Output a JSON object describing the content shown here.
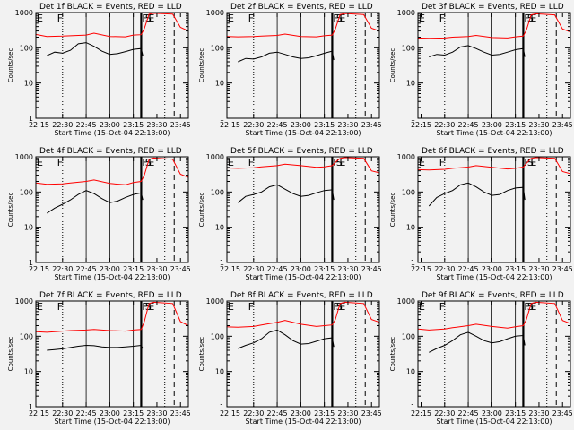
{
  "figure": {
    "background": "#f2f2f2",
    "events_color": "#000000",
    "lld_color": "#ff0000",
    "xlabel": "Start Time (15-Oct-04 22:13:00)",
    "ylabel": "Counts/sec"
  },
  "chart_data": [
    {
      "type": "line",
      "title": "Det 1f BLACK = Events, RED = LLD",
      "xlabel": "Start Time (15-Oct-04 22:13:00)",
      "ylabel": "Counts/sec",
      "xlim": [
        "22:13",
        "23:50"
      ],
      "ylim": [
        1,
        1000
      ],
      "y_scale": "log",
      "x_ticks": [
        "22:15",
        "22:30",
        "22:45",
        "23:00",
        "23:15",
        "23:30",
        "23:45"
      ],
      "y_ticks": [
        "1",
        "10",
        "100",
        "1000"
      ],
      "region_markers": [
        "E",
        "F",
        "F",
        "S",
        "E"
      ],
      "series": [
        {
          "name": "Events",
          "x": [
            "22:20",
            "22:25",
            "22:30",
            "22:35",
            "22:40",
            "22:45",
            "22:50",
            "22:55",
            "23:00",
            "23:05",
            "23:10",
            "23:15",
            "23:20",
            "23:21"
          ],
          "values": [
            60,
            75,
            70,
            85,
            130,
            140,
            110,
            80,
            65,
            68,
            78,
            90,
            95,
            60
          ]
        },
        {
          "name": "LLD",
          "x": [
            "22:13",
            "22:20",
            "22:30",
            "22:35",
            "22:45",
            "22:50",
            "23:00",
            "23:10",
            "23:15",
            "23:20",
            "23:22",
            "23:25",
            "23:28",
            "23:40",
            "23:45",
            "23:50"
          ],
          "values": [
            240,
            210,
            215,
            220,
            230,
            260,
            210,
            205,
            230,
            235,
            350,
            900,
            950,
            900,
            380,
            300
          ]
        }
      ]
    },
    {
      "type": "line",
      "title": "Det 2f BLACK = Events, RED = LLD",
      "xlabel": "Start Time (15-Oct-04 22:13:00)",
      "ylabel": "Counts/sec",
      "xlim": [
        "22:13",
        "23:50"
      ],
      "ylim": [
        1,
        1000
      ],
      "y_scale": "log",
      "x_ticks": [
        "22:15",
        "22:30",
        "22:45",
        "23:00",
        "23:15",
        "23:30",
        "23:45"
      ],
      "y_ticks": [
        "1",
        "10",
        "100",
        "1000"
      ],
      "region_markers": [
        "E",
        "F",
        "F",
        "S",
        "E"
      ],
      "series": [
        {
          "name": "Events",
          "x": [
            "22:20",
            "22:25",
            "22:30",
            "22:35",
            "22:40",
            "22:45",
            "22:50",
            "22:55",
            "23:00",
            "23:05",
            "23:10",
            "23:15",
            "23:20",
            "23:21"
          ],
          "values": [
            40,
            50,
            48,
            55,
            70,
            75,
            65,
            55,
            50,
            52,
            60,
            70,
            80,
            45
          ]
        },
        {
          "name": "LLD",
          "x": [
            "22:13",
            "22:20",
            "22:30",
            "22:35",
            "22:45",
            "22:50",
            "23:00",
            "23:10",
            "23:15",
            "23:20",
            "23:22",
            "23:25",
            "23:28",
            "23:40",
            "23:45",
            "23:50"
          ],
          "values": [
            210,
            205,
            210,
            215,
            225,
            245,
            210,
            205,
            220,
            230,
            340,
            880,
            940,
            880,
            360,
            300
          ]
        }
      ]
    },
    {
      "type": "line",
      "title": "Det 3f BLACK = Events, RED = LLD",
      "xlabel": "Start Time (15-Oct-04 22:13:00)",
      "ylabel": "Counts/sec",
      "xlim": [
        "22:13",
        "23:50"
      ],
      "ylim": [
        1,
        1000
      ],
      "y_scale": "log",
      "x_ticks": [
        "22:15",
        "22:30",
        "22:45",
        "23:00",
        "23:15",
        "23:30",
        "23:45"
      ],
      "y_ticks": [
        "1",
        "10",
        "100",
        "1000"
      ],
      "region_markers": [
        "E",
        "F",
        "F",
        "S",
        "E"
      ],
      "series": [
        {
          "name": "Events",
          "x": [
            "22:20",
            "22:25",
            "22:30",
            "22:35",
            "22:40",
            "22:45",
            "22:50",
            "22:55",
            "23:00",
            "23:05",
            "23:10",
            "23:15",
            "23:20",
            "23:21"
          ],
          "values": [
            55,
            65,
            62,
            75,
            105,
            115,
            95,
            75,
            62,
            65,
            75,
            88,
            95,
            55
          ]
        },
        {
          "name": "LLD",
          "x": [
            "22:13",
            "22:20",
            "22:30",
            "22:35",
            "22:45",
            "22:50",
            "23:00",
            "23:10",
            "23:15",
            "23:20",
            "23:22",
            "23:25",
            "23:28",
            "23:40",
            "23:45",
            "23:50"
          ],
          "values": [
            190,
            185,
            190,
            200,
            210,
            225,
            195,
            190,
            205,
            215,
            320,
            860,
            920,
            860,
            340,
            280
          ]
        }
      ]
    },
    {
      "type": "line",
      "title": "Det 4f BLACK = Events, RED = LLD",
      "xlabel": "Start Time (15-Oct-04 22:13:00)",
      "ylabel": "Counts/sec",
      "xlim": [
        "22:13",
        "23:50"
      ],
      "ylim": [
        1,
        1000
      ],
      "y_scale": "log",
      "x_ticks": [
        "22:15",
        "22:30",
        "22:45",
        "23:00",
        "23:15",
        "23:30",
        "23:45"
      ],
      "y_ticks": [
        "1",
        "10",
        "100",
        "1000"
      ],
      "region_markers": [
        "E",
        "F",
        "F",
        "S",
        "E"
      ],
      "series": [
        {
          "name": "Events",
          "x": [
            "22:20",
            "22:25",
            "22:30",
            "22:35",
            "22:40",
            "22:45",
            "22:50",
            "22:55",
            "23:00",
            "23:05",
            "23:10",
            "23:15",
            "23:20",
            "23:21"
          ],
          "values": [
            25,
            35,
            45,
            60,
            85,
            110,
            90,
            65,
            50,
            55,
            70,
            85,
            95,
            60
          ]
        },
        {
          "name": "LLD",
          "x": [
            "22:13",
            "22:20",
            "22:30",
            "22:35",
            "22:45",
            "22:50",
            "23:00",
            "23:10",
            "23:15",
            "23:20",
            "23:22",
            "23:25",
            "23:28",
            "23:40",
            "23:45",
            "23:50"
          ],
          "values": [
            180,
            165,
            170,
            180,
            200,
            220,
            175,
            160,
            185,
            200,
            300,
            850,
            920,
            850,
            320,
            260
          ]
        }
      ]
    },
    {
      "type": "line",
      "title": "Det 5f BLACK = Events, RED = LLD",
      "xlabel": "Start Time (15-Oct-04 22:13:00)",
      "ylabel": "Counts/sec",
      "xlim": [
        "22:13",
        "23:50"
      ],
      "ylim": [
        1,
        1000
      ],
      "y_scale": "log",
      "x_ticks": [
        "22:15",
        "22:30",
        "22:45",
        "23:00",
        "23:15",
        "23:30",
        "23:45"
      ],
      "y_ticks": [
        "1",
        "10",
        "100",
        "1000"
      ],
      "region_markers": [
        "E",
        "F",
        "F",
        "S",
        "E"
      ],
      "series": [
        {
          "name": "Events",
          "x": [
            "22:20",
            "22:25",
            "22:30",
            "22:35",
            "22:40",
            "22:45",
            "22:50",
            "22:55",
            "23:00",
            "23:05",
            "23:10",
            "23:15",
            "23:20",
            "23:21"
          ],
          "values": [
            50,
            75,
            85,
            100,
            140,
            160,
            120,
            90,
            75,
            80,
            95,
            110,
            115,
            60
          ]
        },
        {
          "name": "LLD",
          "x": [
            "22:13",
            "22:20",
            "22:30",
            "22:35",
            "22:45",
            "22:50",
            "23:00",
            "23:10",
            "23:15",
            "23:20",
            "23:22",
            "23:25",
            "23:28",
            "23:40",
            "23:45",
            "23:50"
          ],
          "values": [
            480,
            470,
            490,
            520,
            560,
            620,
            560,
            500,
            520,
            560,
            700,
            900,
            950,
            900,
            400,
            350
          ]
        }
      ]
    },
    {
      "type": "line",
      "title": "Det 6f BLACK = Events, RED = LLD",
      "xlabel": "Start Time (15-Oct-04 22:13:00)",
      "ylabel": "Counts/sec",
      "xlim": [
        "22:13",
        "23:50"
      ],
      "ylim": [
        1,
        1000
      ],
      "y_scale": "log",
      "x_ticks": [
        "22:15",
        "22:30",
        "22:45",
        "23:00",
        "23:15",
        "23:30",
        "23:45"
      ],
      "y_ticks": [
        "1",
        "10",
        "100",
        "1000"
      ],
      "region_markers": [
        "E",
        "F",
        "F",
        "S",
        "E"
      ],
      "series": [
        {
          "name": "Events",
          "x": [
            "22:20",
            "22:25",
            "22:30",
            "22:35",
            "22:40",
            "22:45",
            "22:50",
            "22:55",
            "23:00",
            "23:05",
            "23:10",
            "23:15",
            "23:20",
            "23:21"
          ],
          "values": [
            40,
            70,
            90,
            110,
            160,
            180,
            140,
            100,
            80,
            85,
            110,
            130,
            135,
            60
          ]
        },
        {
          "name": "LLD",
          "x": [
            "22:13",
            "22:20",
            "22:30",
            "22:35",
            "22:45",
            "22:50",
            "23:00",
            "23:10",
            "23:15",
            "23:20",
            "23:22",
            "23:25",
            "23:28",
            "23:40",
            "23:45",
            "23:50"
          ],
          "values": [
            430,
            420,
            440,
            470,
            510,
            560,
            500,
            450,
            470,
            510,
            650,
            900,
            950,
            900,
            380,
            330
          ]
        }
      ]
    },
    {
      "type": "line",
      "title": "Det 7f BLACK = Events, RED = LLD",
      "xlabel": "Start Time (15-Oct-04 22:13:00)",
      "ylabel": "Counts/sec",
      "xlim": [
        "22:13",
        "23:50"
      ],
      "ylim": [
        1,
        1000
      ],
      "y_scale": "log",
      "x_ticks": [
        "22:15",
        "22:30",
        "22:45",
        "23:00",
        "23:15",
        "23:30",
        "23:45"
      ],
      "y_ticks": [
        "1",
        "10",
        "100",
        "1000"
      ],
      "region_markers": [
        "E",
        "F",
        "F",
        "S",
        "E"
      ],
      "series": [
        {
          "name": "Events",
          "x": [
            "22:20",
            "22:25",
            "22:30",
            "22:35",
            "22:40",
            "22:45",
            "22:50",
            "22:55",
            "23:00",
            "23:05",
            "23:10",
            "23:15",
            "23:20",
            "23:21"
          ],
          "values": [
            40,
            42,
            44,
            48,
            52,
            55,
            54,
            50,
            48,
            48,
            50,
            52,
            55,
            45
          ]
        },
        {
          "name": "LLD",
          "x": [
            "22:13",
            "22:20",
            "22:30",
            "22:35",
            "22:45",
            "22:50",
            "23:00",
            "23:10",
            "23:15",
            "23:20",
            "23:22",
            "23:25",
            "23:28",
            "23:40",
            "23:45",
            "23:50"
          ],
          "values": [
            135,
            130,
            140,
            145,
            150,
            155,
            145,
            140,
            150,
            155,
            260,
            850,
            920,
            850,
            260,
            200
          ]
        }
      ]
    },
    {
      "type": "line",
      "title": "Det 8f BLACK = Events, RED = LLD",
      "xlabel": "Start Time (15-Oct-04 22:13:00)",
      "ylabel": "Counts/sec",
      "xlim": [
        "22:13",
        "23:50"
      ],
      "ylim": [
        1,
        1000
      ],
      "y_scale": "log",
      "x_ticks": [
        "22:15",
        "22:30",
        "22:45",
        "23:00",
        "23:15",
        "23:30",
        "23:45"
      ],
      "y_ticks": [
        "1",
        "10",
        "100",
        "1000"
      ],
      "region_markers": [
        "E",
        "F",
        "F",
        "S",
        "E"
      ],
      "series": [
        {
          "name": "Events",
          "x": [
            "22:20",
            "22:25",
            "22:30",
            "22:35",
            "22:40",
            "22:45",
            "22:50",
            "22:55",
            "23:00",
            "23:05",
            "23:10",
            "23:15",
            "23:20",
            "23:21"
          ],
          "values": [
            45,
            55,
            65,
            85,
            130,
            150,
            110,
            75,
            60,
            62,
            72,
            85,
            90,
            50
          ]
        },
        {
          "name": "LLD",
          "x": [
            "22:13",
            "22:20",
            "22:30",
            "22:35",
            "22:45",
            "22:50",
            "23:00",
            "23:10",
            "23:15",
            "23:20",
            "23:22",
            "23:25",
            "23:28",
            "23:40",
            "23:45",
            "23:50"
          ],
          "values": [
            185,
            180,
            190,
            210,
            250,
            280,
            220,
            190,
            200,
            210,
            300,
            850,
            920,
            850,
            300,
            250
          ]
        }
      ]
    },
    {
      "type": "line",
      "title": "Det 9f BLACK = Events, RED = LLD",
      "xlabel": "Start Time (15-Oct-04 22:13:00)",
      "ylabel": "Counts/sec",
      "xlim": [
        "22:13",
        "23:50"
      ],
      "ylim": [
        1,
        1000
      ],
      "y_scale": "log",
      "x_ticks": [
        "22:15",
        "22:30",
        "22:45",
        "23:00",
        "23:15",
        "23:30",
        "23:45"
      ],
      "y_ticks": [
        "1",
        "10",
        "100",
        "1000"
      ],
      "region_markers": [
        "E",
        "F",
        "F",
        "S",
        "E"
      ],
      "series": [
        {
          "name": "Events",
          "x": [
            "22:20",
            "22:25",
            "22:30",
            "22:35",
            "22:40",
            "22:45",
            "22:50",
            "22:55",
            "23:00",
            "23:05",
            "23:10",
            "23:15",
            "23:20",
            "23:21"
          ],
          "values": [
            35,
            45,
            55,
            75,
            110,
            130,
            100,
            75,
            65,
            70,
            85,
            100,
            105,
            55
          ]
        },
        {
          "name": "LLD",
          "x": [
            "22:13",
            "22:20",
            "22:30",
            "22:35",
            "22:45",
            "22:50",
            "23:00",
            "23:10",
            "23:15",
            "23:20",
            "23:22",
            "23:25",
            "23:28",
            "23:40",
            "23:45",
            "23:50"
          ],
          "values": [
            160,
            150,
            160,
            175,
            200,
            220,
            190,
            170,
            185,
            200,
            300,
            850,
            920,
            850,
            280,
            230
          ]
        }
      ]
    }
  ]
}
